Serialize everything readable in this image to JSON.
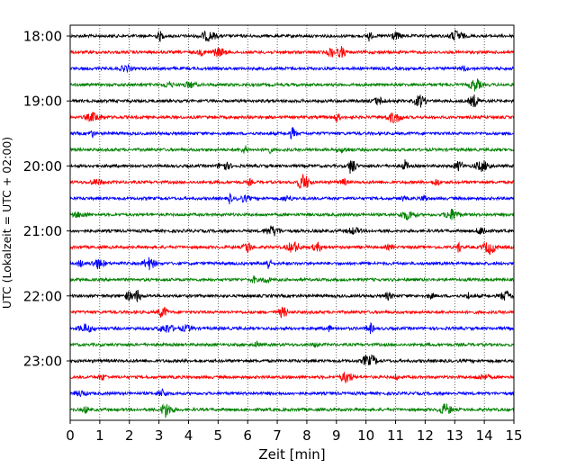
{
  "chart_data": {
    "type": "line",
    "title": "",
    "xlabel": "Zeit  [min]",
    "ylabel": "UTC (Lokalzeit = UTC + 02:00)",
    "xlim": [
      0,
      15
    ],
    "x_ticks": [
      0,
      1,
      2,
      3,
      4,
      5,
      6,
      7,
      8,
      9,
      10,
      11,
      12,
      13,
      14,
      15
    ],
    "x_tick_labels": [
      "0",
      "1",
      "2",
      "3",
      "4",
      "5",
      "6",
      "7",
      "8",
      "9",
      "10",
      "11",
      "12",
      "13",
      "14",
      "15"
    ],
    "y_tick_labels": [
      "18:00",
      "19:00",
      "20:00",
      "21:00",
      "22:00",
      "23:00"
    ],
    "grid": "vertical dotted lines at each minute",
    "trace_interval_min": 15,
    "trace_colors": [
      "#000000",
      "#ff0000",
      "#0000ff",
      "#008000"
    ],
    "series": [
      {
        "start": "18:00",
        "color": "#000000"
      },
      {
        "start": "18:15",
        "color": "#ff0000"
      },
      {
        "start": "18:30",
        "color": "#0000ff"
      },
      {
        "start": "18:45",
        "color": "#008000"
      },
      {
        "start": "19:00",
        "color": "#000000"
      },
      {
        "start": "19:15",
        "color": "#ff0000"
      },
      {
        "start": "19:30",
        "color": "#0000ff"
      },
      {
        "start": "19:45",
        "color": "#008000"
      },
      {
        "start": "20:00",
        "color": "#000000"
      },
      {
        "start": "20:15",
        "color": "#ff0000"
      },
      {
        "start": "20:30",
        "color": "#0000ff"
      },
      {
        "start": "20:45",
        "color": "#008000"
      },
      {
        "start": "21:00",
        "color": "#000000"
      },
      {
        "start": "21:15",
        "color": "#ff0000"
      },
      {
        "start": "21:30",
        "color": "#0000ff"
      },
      {
        "start": "21:45",
        "color": "#008000"
      },
      {
        "start": "22:00",
        "color": "#000000"
      },
      {
        "start": "22:15",
        "color": "#ff0000"
      },
      {
        "start": "22:30",
        "color": "#0000ff"
      },
      {
        "start": "22:45",
        "color": "#008000"
      },
      {
        "start": "23:00",
        "color": "#000000"
      },
      {
        "start": "23:15",
        "color": "#ff0000"
      },
      {
        "start": "23:30",
        "color": "#0000ff"
      },
      {
        "start": "23:45",
        "color": "#008000"
      }
    ]
  }
}
